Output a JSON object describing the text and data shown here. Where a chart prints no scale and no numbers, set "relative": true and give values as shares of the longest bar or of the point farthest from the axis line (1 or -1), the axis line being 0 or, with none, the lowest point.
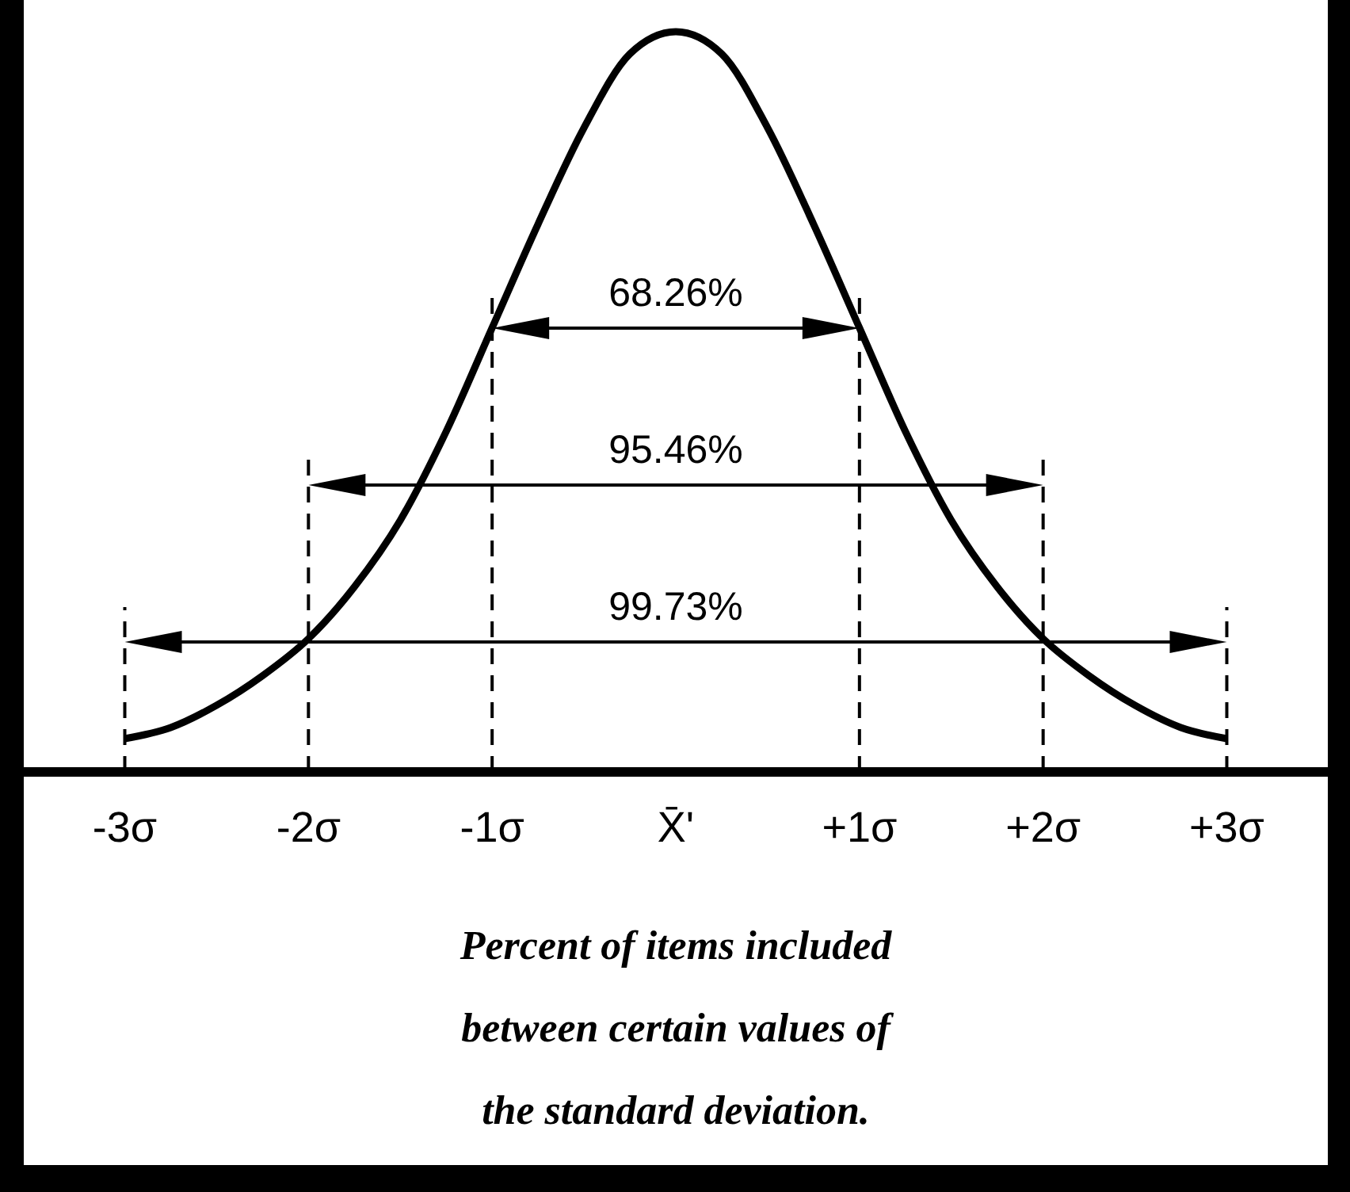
{
  "chart_data": {
    "type": "line",
    "relative": true,
    "marker": "none",
    "line_style": "solid",
    "x": [
      -3,
      -2.75,
      -2.5,
      -2.25,
      -2,
      -1.75,
      -1.5,
      -1.25,
      -1,
      -0.75,
      -0.5,
      -0.25,
      0,
      0.25,
      0.5,
      0.75,
      1,
      1.25,
      1.5,
      1.75,
      2,
      2.25,
      2.5,
      2.75,
      3
    ],
    "xlim": [
      -3.55,
      3.55
    ],
    "xticks": [
      {
        "value": -3,
        "label": "-3σ"
      },
      {
        "value": -2,
        "label": "-2σ"
      },
      {
        "value": -1,
        "label": "-1σ"
      },
      {
        "value": 0,
        "label": "X̄'"
      },
      {
        "value": 1,
        "label": "+1σ"
      },
      {
        "value": 2,
        "label": "+2σ"
      },
      {
        "value": 3,
        "label": "+3σ"
      }
    ],
    "series": [
      {
        "color": "#000000",
        "values": [
          0.045,
          0.06,
          0.09,
          0.13,
          0.18,
          0.25,
          0.34,
          0.46,
          0.6,
          0.74,
          0.87,
          0.97,
          1,
          0.97,
          0.87,
          0.74,
          0.6,
          0.46,
          0.34,
          0.25,
          0.18,
          0.13,
          0.09,
          0.06,
          0.045
        ]
      }
    ],
    "ref_lines": [
      {
        "axis": "x",
        "value": -1,
        "line_style": "dashed"
      },
      {
        "axis": "x",
        "value": 1,
        "line_style": "dashed"
      },
      {
        "axis": "x",
        "value": -2,
        "line_style": "dashed"
      },
      {
        "axis": "x",
        "value": 2,
        "line_style": "dashed"
      },
      {
        "axis": "x",
        "value": -3,
        "line_style": "dashed"
      },
      {
        "axis": "x",
        "value": 3,
        "line_style": "dashed"
      }
    ],
    "annotations": [
      "68.26%",
      "95.46%",
      "99.73%",
      "Percent of items included between certain values of the standard deviation."
    ]
  }
}
